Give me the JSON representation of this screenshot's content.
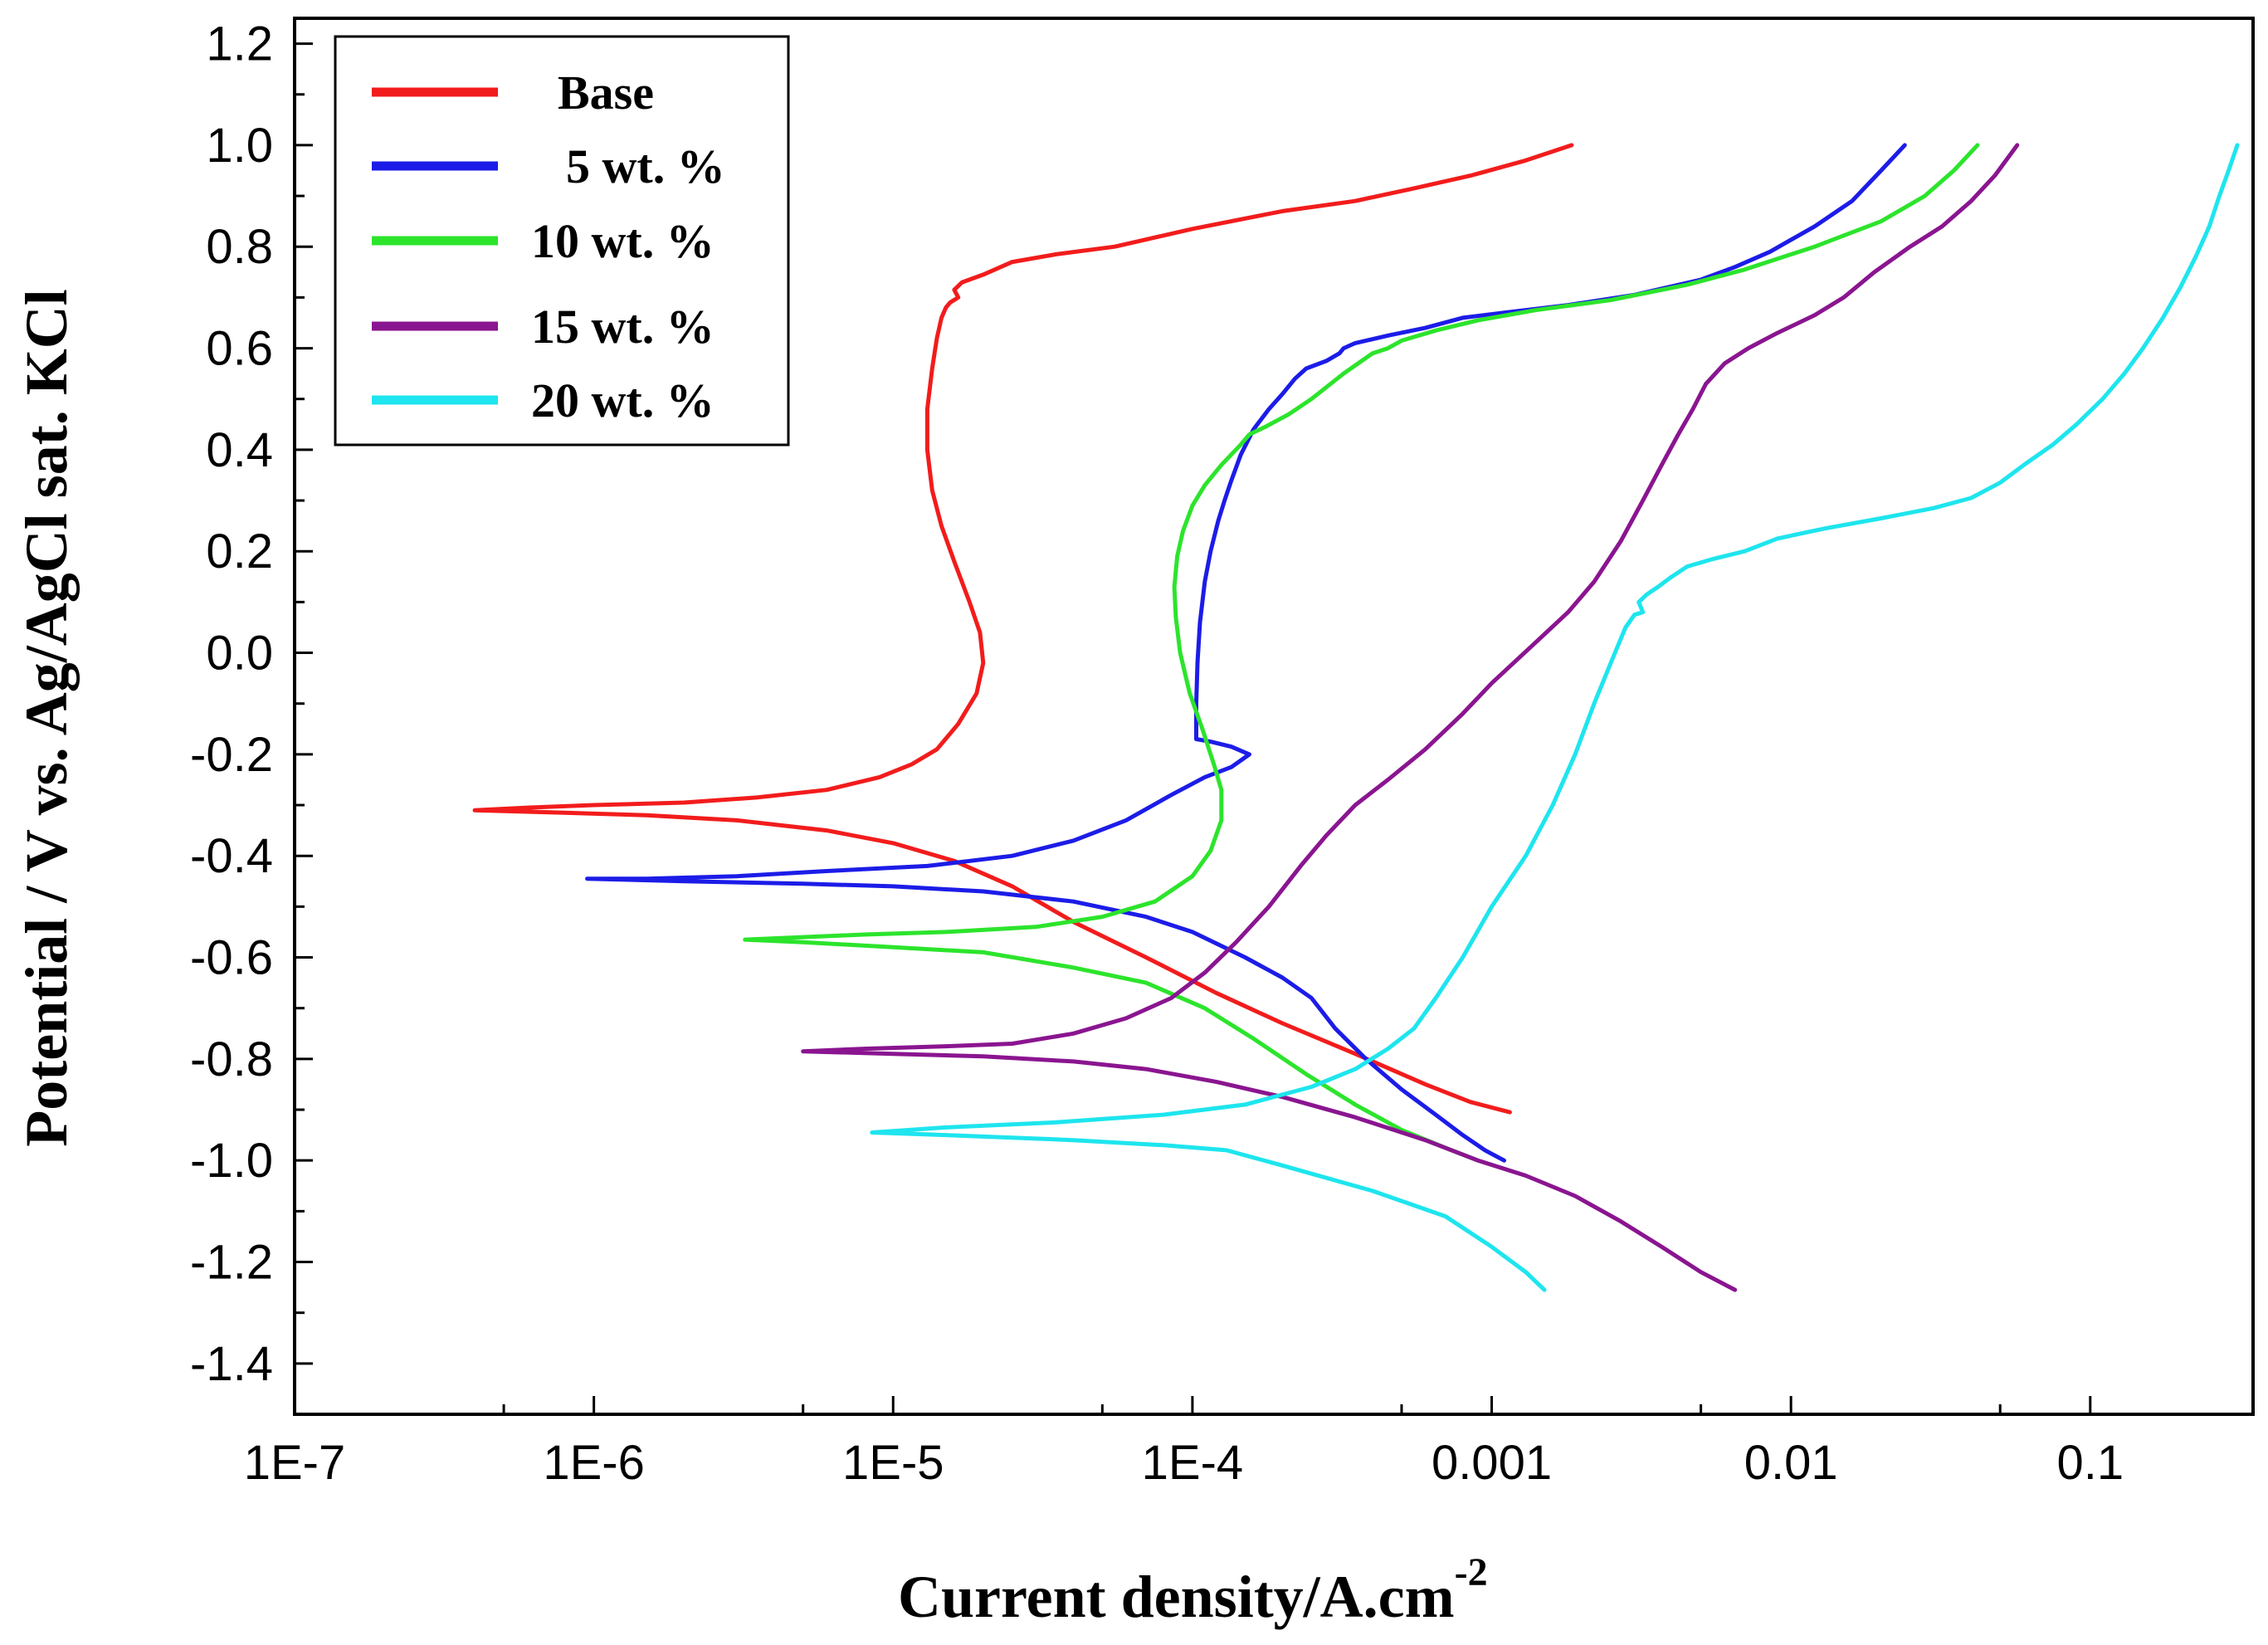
{
  "chart_data": {
    "type": "line",
    "title": "",
    "xlabel": "Current density/A.cm",
    "xlabel_superscript": "-2",
    "ylabel": "Potential / V vs. Ag/AgCl sat. KCl",
    "x_scale": "log",
    "xlim": [
      1e-07,
      0.35
    ],
    "ylim": [
      -1.5,
      1.25
    ],
    "grid": false,
    "legend_position": "top-left",
    "x_ticks": [
      {
        "value": 1e-07,
        "label": "1E-7"
      },
      {
        "value": 1e-06,
        "label": "1E-6"
      },
      {
        "value": 1e-05,
        "label": "1E-5"
      },
      {
        "value": 0.0001,
        "label": "1E-4"
      },
      {
        "value": 0.001,
        "label": "0.001"
      },
      {
        "value": 0.01,
        "label": "0.01"
      },
      {
        "value": 0.1,
        "label": "0.1"
      }
    ],
    "y_ticks": [
      {
        "value": 1.2,
        "label": "1.2"
      },
      {
        "value": 1.0,
        "label": "1.0"
      },
      {
        "value": 0.8,
        "label": "0.8"
      },
      {
        "value": 0.6,
        "label": "0.6"
      },
      {
        "value": 0.4,
        "label": "0.4"
      },
      {
        "value": 0.2,
        "label": "0.2"
      },
      {
        "value": 0.0,
        "label": "0.0"
      },
      {
        "value": -0.2,
        "label": "-0.2"
      },
      {
        "value": -0.4,
        "label": "-0.4"
      },
      {
        "value": -0.6,
        "label": "-0.6"
      },
      {
        "value": -0.8,
        "label": "-0.8"
      },
      {
        "value": -1.0,
        "label": "-1.0"
      },
      {
        "value": -1.2,
        "label": "-1.2"
      },
      {
        "value": -1.4,
        "label": "-1.4"
      }
    ],
    "series": [
      {
        "name": "Base",
        "legend_label": "Base",
        "color": "#f21c1c",
        "points": [
          [
            0.00185,
            1.0
          ],
          [
            0.0013,
            0.97
          ],
          [
            0.00085,
            0.94
          ],
          [
            0.00055,
            0.915
          ],
          [
            0.00035,
            0.89
          ],
          [
            0.0002,
            0.87
          ],
          [
            0.0001,
            0.835
          ],
          [
            5.5e-05,
            0.8
          ],
          [
            3.5e-05,
            0.785
          ],
          [
            2.5e-05,
            0.77
          ],
          [
            2e-05,
            0.745
          ],
          [
            1.7e-05,
            0.73
          ],
          [
            1.6e-05,
            0.715
          ],
          [
            1.65e-05,
            0.7
          ],
          [
            1.55e-05,
            0.69
          ],
          [
            1.5e-05,
            0.68
          ],
          [
            1.45e-05,
            0.66
          ],
          [
            1.4e-05,
            0.62
          ],
          [
            1.35e-05,
            0.56
          ],
          [
            1.3e-05,
            0.48
          ],
          [
            1.3e-05,
            0.4
          ],
          [
            1.35e-05,
            0.32
          ],
          [
            1.45e-05,
            0.25
          ],
          [
            1.6e-05,
            0.18
          ],
          [
            1.8e-05,
            0.1
          ],
          [
            1.95e-05,
            0.04
          ],
          [
            2e-05,
            -0.02
          ],
          [
            1.9e-05,
            -0.08
          ],
          [
            1.65e-05,
            -0.14
          ],
          [
            1.4e-05,
            -0.19
          ],
          [
            1.15e-05,
            -0.22
          ],
          [
            9e-06,
            -0.245
          ],
          [
            6e-06,
            -0.27
          ],
          [
            3.5e-06,
            -0.285
          ],
          [
            2e-06,
            -0.295
          ],
          [
            1e-06,
            -0.3
          ],
          [
            6e-07,
            -0.305
          ],
          [
            4e-07,
            -0.31
          ],
          [
            8e-07,
            -0.315
          ],
          [
            1.5e-06,
            -0.32
          ],
          [
            3e-06,
            -0.33
          ],
          [
            6e-06,
            -0.35
          ],
          [
            1e-05,
            -0.375
          ],
          [
            1.6e-05,
            -0.41
          ],
          [
            2.5e-05,
            -0.46
          ],
          [
            4e-05,
            -0.53
          ],
          [
            7e-05,
            -0.6
          ],
          [
            0.00012,
            -0.67
          ],
          [
            0.0002,
            -0.73
          ],
          [
            0.00035,
            -0.79
          ],
          [
            0.0006,
            -0.85
          ],
          [
            0.00085,
            -0.885
          ],
          [
            0.00115,
            -0.905
          ]
        ]
      },
      {
        "name": "5 wt. %",
        "legend_label": "5 wt. %",
        "color": "#1c1ce8",
        "points": [
          [
            0.024,
            1.0
          ],
          [
            0.02,
            0.95
          ],
          [
            0.016,
            0.89
          ],
          [
            0.012,
            0.84
          ],
          [
            0.0085,
            0.79
          ],
          [
            0.0065,
            0.76
          ],
          [
            0.005,
            0.735
          ],
          [
            0.003,
            0.705
          ],
          [
            0.0018,
            0.685
          ],
          [
            0.0011,
            0.67
          ],
          [
            0.0008,
            0.66
          ],
          [
            0.0006,
            0.64
          ],
          [
            0.00045,
            0.625
          ],
          [
            0.00035,
            0.61
          ],
          [
            0.00032,
            0.6
          ],
          [
            0.00031,
            0.59
          ],
          [
            0.00028,
            0.575
          ],
          [
            0.00024,
            0.56
          ],
          [
            0.00022,
            0.54
          ],
          [
            0.0002,
            0.51
          ],
          [
            0.00018,
            0.48
          ],
          [
            0.00016,
            0.44
          ],
          [
            0.000145,
            0.39
          ],
          [
            0.000135,
            0.34
          ],
          [
            0.000128,
            0.3
          ],
          [
            0.000122,
            0.26
          ],
          [
            0.000115,
            0.2
          ],
          [
            0.00011,
            0.14
          ],
          [
            0.000106,
            0.06
          ],
          [
            0.000104,
            -0.02
          ],
          [
            0.000103,
            -0.1
          ],
          [
            0.000103,
            -0.17
          ],
          [
            0.000115,
            -0.175
          ],
          [
            0.000135,
            -0.185
          ],
          [
            0.000155,
            -0.2
          ],
          [
            0.000135,
            -0.225
          ],
          [
            0.00011,
            -0.245
          ],
          [
            8.5e-05,
            -0.28
          ],
          [
            6e-05,
            -0.33
          ],
          [
            4e-05,
            -0.37
          ],
          [
            2.5e-05,
            -0.4
          ],
          [
            1.3e-05,
            -0.42
          ],
          [
            6e-06,
            -0.43
          ],
          [
            3e-06,
            -0.44
          ],
          [
            1.5e-06,
            -0.445
          ],
          [
            9.5e-07,
            -0.445
          ],
          [
            2e-06,
            -0.45
          ],
          [
            5e-06,
            -0.455
          ],
          [
            1e-05,
            -0.46
          ],
          [
            2e-05,
            -0.47
          ],
          [
            4e-05,
            -0.49
          ],
          [
            7e-05,
            -0.52
          ],
          [
            0.0001,
            -0.55
          ],
          [
            0.00015,
            -0.6
          ],
          [
            0.0002,
            -0.64
          ],
          [
            0.00025,
            -0.68
          ],
          [
            0.0003,
            -0.74
          ],
          [
            0.00038,
            -0.8
          ],
          [
            0.0005,
            -0.86
          ],
          [
            0.00065,
            -0.91
          ],
          [
            0.0008,
            -0.95
          ],
          [
            0.00095,
            -0.98
          ],
          [
            0.0011,
            -1.0
          ]
        ]
      },
      {
        "name": "10 wt. %",
        "legend_label": "10 wt. %",
        "color": "#2ce42c",
        "points": [
          [
            0.042,
            1.0
          ],
          [
            0.035,
            0.95
          ],
          [
            0.028,
            0.9
          ],
          [
            0.02,
            0.85
          ],
          [
            0.012,
            0.8
          ],
          [
            0.007,
            0.755
          ],
          [
            0.0045,
            0.725
          ],
          [
            0.0025,
            0.695
          ],
          [
            0.0014,
            0.675
          ],
          [
            0.0009,
            0.655
          ],
          [
            0.00065,
            0.635
          ],
          [
            0.0005,
            0.615
          ],
          [
            0.00045,
            0.6
          ],
          [
            0.0004,
            0.59
          ],
          [
            0.00032,
            0.55
          ],
          [
            0.00025,
            0.5
          ],
          [
            0.00021,
            0.47
          ],
          [
            0.000175,
            0.445
          ],
          [
            0.000155,
            0.43
          ],
          [
            0.000145,
            0.41
          ],
          [
            0.000125,
            0.37
          ],
          [
            0.00011,
            0.33
          ],
          [
            0.0001,
            0.29
          ],
          [
            9.3e-05,
            0.24
          ],
          [
            8.9e-05,
            0.19
          ],
          [
            8.7e-05,
            0.13
          ],
          [
            8.8e-05,
            0.07
          ],
          [
            9.1e-05,
            0.0
          ],
          [
            9.8e-05,
            -0.08
          ],
          [
            0.000108,
            -0.15
          ],
          [
            0.000118,
            -0.22
          ],
          [
            0.000125,
            -0.27
          ],
          [
            0.000125,
            -0.33
          ],
          [
            0.000115,
            -0.39
          ],
          [
            0.0001,
            -0.44
          ],
          [
            7.5e-05,
            -0.49
          ],
          [
            5e-05,
            -0.52
          ],
          [
            3e-05,
            -0.54
          ],
          [
            1.5e-05,
            -0.55
          ],
          [
            8e-06,
            -0.555
          ],
          [
            5e-06,
            -0.56
          ],
          [
            3.2e-06,
            -0.565
          ],
          [
            5e-06,
            -0.57
          ],
          [
            1e-05,
            -0.58
          ],
          [
            2e-05,
            -0.59
          ],
          [
            4e-05,
            -0.62
          ],
          [
            7e-05,
            -0.65
          ],
          [
            0.00011,
            -0.7
          ],
          [
            0.00016,
            -0.76
          ],
          [
            0.00024,
            -0.83
          ],
          [
            0.00035,
            -0.89
          ],
          [
            0.0005,
            -0.94
          ],
          [
            0.0007,
            -0.975
          ],
          [
            0.0009,
            -1.0
          ]
        ]
      },
      {
        "name": "15 wt. %",
        "legend_label": "15 wt. %",
        "color": "#8a1590",
        "points": [
          [
            0.057,
            1.0
          ],
          [
            0.048,
            0.94
          ],
          [
            0.04,
            0.89
          ],
          [
            0.032,
            0.84
          ],
          [
            0.025,
            0.8
          ],
          [
            0.019,
            0.75
          ],
          [
            0.015,
            0.7
          ],
          [
            0.012,
            0.665
          ],
          [
            0.009,
            0.63
          ],
          [
            0.0072,
            0.6
          ],
          [
            0.006,
            0.57
          ],
          [
            0.0052,
            0.53
          ],
          [
            0.0047,
            0.48
          ],
          [
            0.0042,
            0.43
          ],
          [
            0.0037,
            0.37
          ],
          [
            0.0032,
            0.3
          ],
          [
            0.0027,
            0.22
          ],
          [
            0.0022,
            0.14
          ],
          [
            0.0018,
            0.08
          ],
          [
            0.0014,
            0.02
          ],
          [
            0.001,
            -0.06
          ],
          [
            0.0008,
            -0.12
          ],
          [
            0.0006,
            -0.19
          ],
          [
            0.00045,
            -0.25
          ],
          [
            0.00035,
            -0.3
          ],
          [
            0.00028,
            -0.36
          ],
          [
            0.00023,
            -0.42
          ],
          [
            0.00018,
            -0.5
          ],
          [
            0.00014,
            -0.57
          ],
          [
            0.00011,
            -0.63
          ],
          [
            8.5e-05,
            -0.68
          ],
          [
            6e-05,
            -0.72
          ],
          [
            4e-05,
            -0.75
          ],
          [
            2.5e-05,
            -0.77
          ],
          [
            1.5e-05,
            -0.775
          ],
          [
            8e-06,
            -0.78
          ],
          [
            5e-06,
            -0.785
          ],
          [
            1e-05,
            -0.79
          ],
          [
            2e-05,
            -0.795
          ],
          [
            4e-05,
            -0.805
          ],
          [
            7e-05,
            -0.82
          ],
          [
            0.00012,
            -0.845
          ],
          [
            0.0002,
            -0.875
          ],
          [
            0.00035,
            -0.915
          ],
          [
            0.0006,
            -0.96
          ],
          [
            0.0009,
            -1.0
          ],
          [
            0.0013,
            -1.03
          ],
          [
            0.0019,
            -1.07
          ],
          [
            0.0027,
            -1.12
          ],
          [
            0.0037,
            -1.17
          ],
          [
            0.005,
            -1.22
          ],
          [
            0.0065,
            -1.255
          ]
        ]
      },
      {
        "name": "20 wt. %",
        "legend_label": "20 wt. %",
        "color": "#1ee5ee",
        "points": [
          [
            0.31,
            1.0
          ],
          [
            0.29,
            0.95
          ],
          [
            0.27,
            0.9
          ],
          [
            0.25,
            0.84
          ],
          [
            0.225,
            0.78
          ],
          [
            0.2,
            0.72
          ],
          [
            0.175,
            0.66
          ],
          [
            0.15,
            0.6
          ],
          [
            0.13,
            0.55
          ],
          [
            0.11,
            0.5
          ],
          [
            0.09,
            0.45
          ],
          [
            0.075,
            0.41
          ],
          [
            0.06,
            0.37
          ],
          [
            0.05,
            0.335
          ],
          [
            0.04,
            0.305
          ],
          [
            0.03,
            0.285
          ],
          [
            0.02,
            0.265
          ],
          [
            0.013,
            0.245
          ],
          [
            0.009,
            0.225
          ],
          [
            0.007,
            0.2
          ],
          [
            0.0055,
            0.185
          ],
          [
            0.0045,
            0.17
          ],
          [
            0.004,
            0.15
          ],
          [
            0.0036,
            0.13
          ],
          [
            0.0033,
            0.115
          ],
          [
            0.0031,
            0.1
          ],
          [
            0.0032,
            0.08
          ],
          [
            0.003,
            0.075
          ],
          [
            0.0028,
            0.05
          ],
          [
            0.0025,
            -0.02
          ],
          [
            0.0022,
            -0.1
          ],
          [
            0.0019,
            -0.2
          ],
          [
            0.0016,
            -0.3
          ],
          [
            0.0013,
            -0.4
          ],
          [
            0.001,
            -0.5
          ],
          [
            0.0008,
            -0.6
          ],
          [
            0.00065,
            -0.68
          ],
          [
            0.00055,
            -0.74
          ],
          [
            0.00045,
            -0.78
          ],
          [
            0.00035,
            -0.82
          ],
          [
            0.00025,
            -0.855
          ],
          [
            0.00015,
            -0.89
          ],
          [
            8e-05,
            -0.91
          ],
          [
            3.5e-05,
            -0.925
          ],
          [
            1.5e-05,
            -0.935
          ],
          [
            8.5e-06,
            -0.945
          ],
          [
            1.5e-05,
            -0.95
          ],
          [
            4e-05,
            -0.96
          ],
          [
            8e-05,
            -0.97
          ],
          [
            0.00013,
            -0.98
          ],
          [
            0.0002,
            -1.01
          ],
          [
            0.0004,
            -1.06
          ],
          [
            0.0007,
            -1.11
          ],
          [
            0.001,
            -1.17
          ],
          [
            0.0013,
            -1.22
          ],
          [
            0.0015,
            -1.255
          ]
        ]
      }
    ]
  }
}
